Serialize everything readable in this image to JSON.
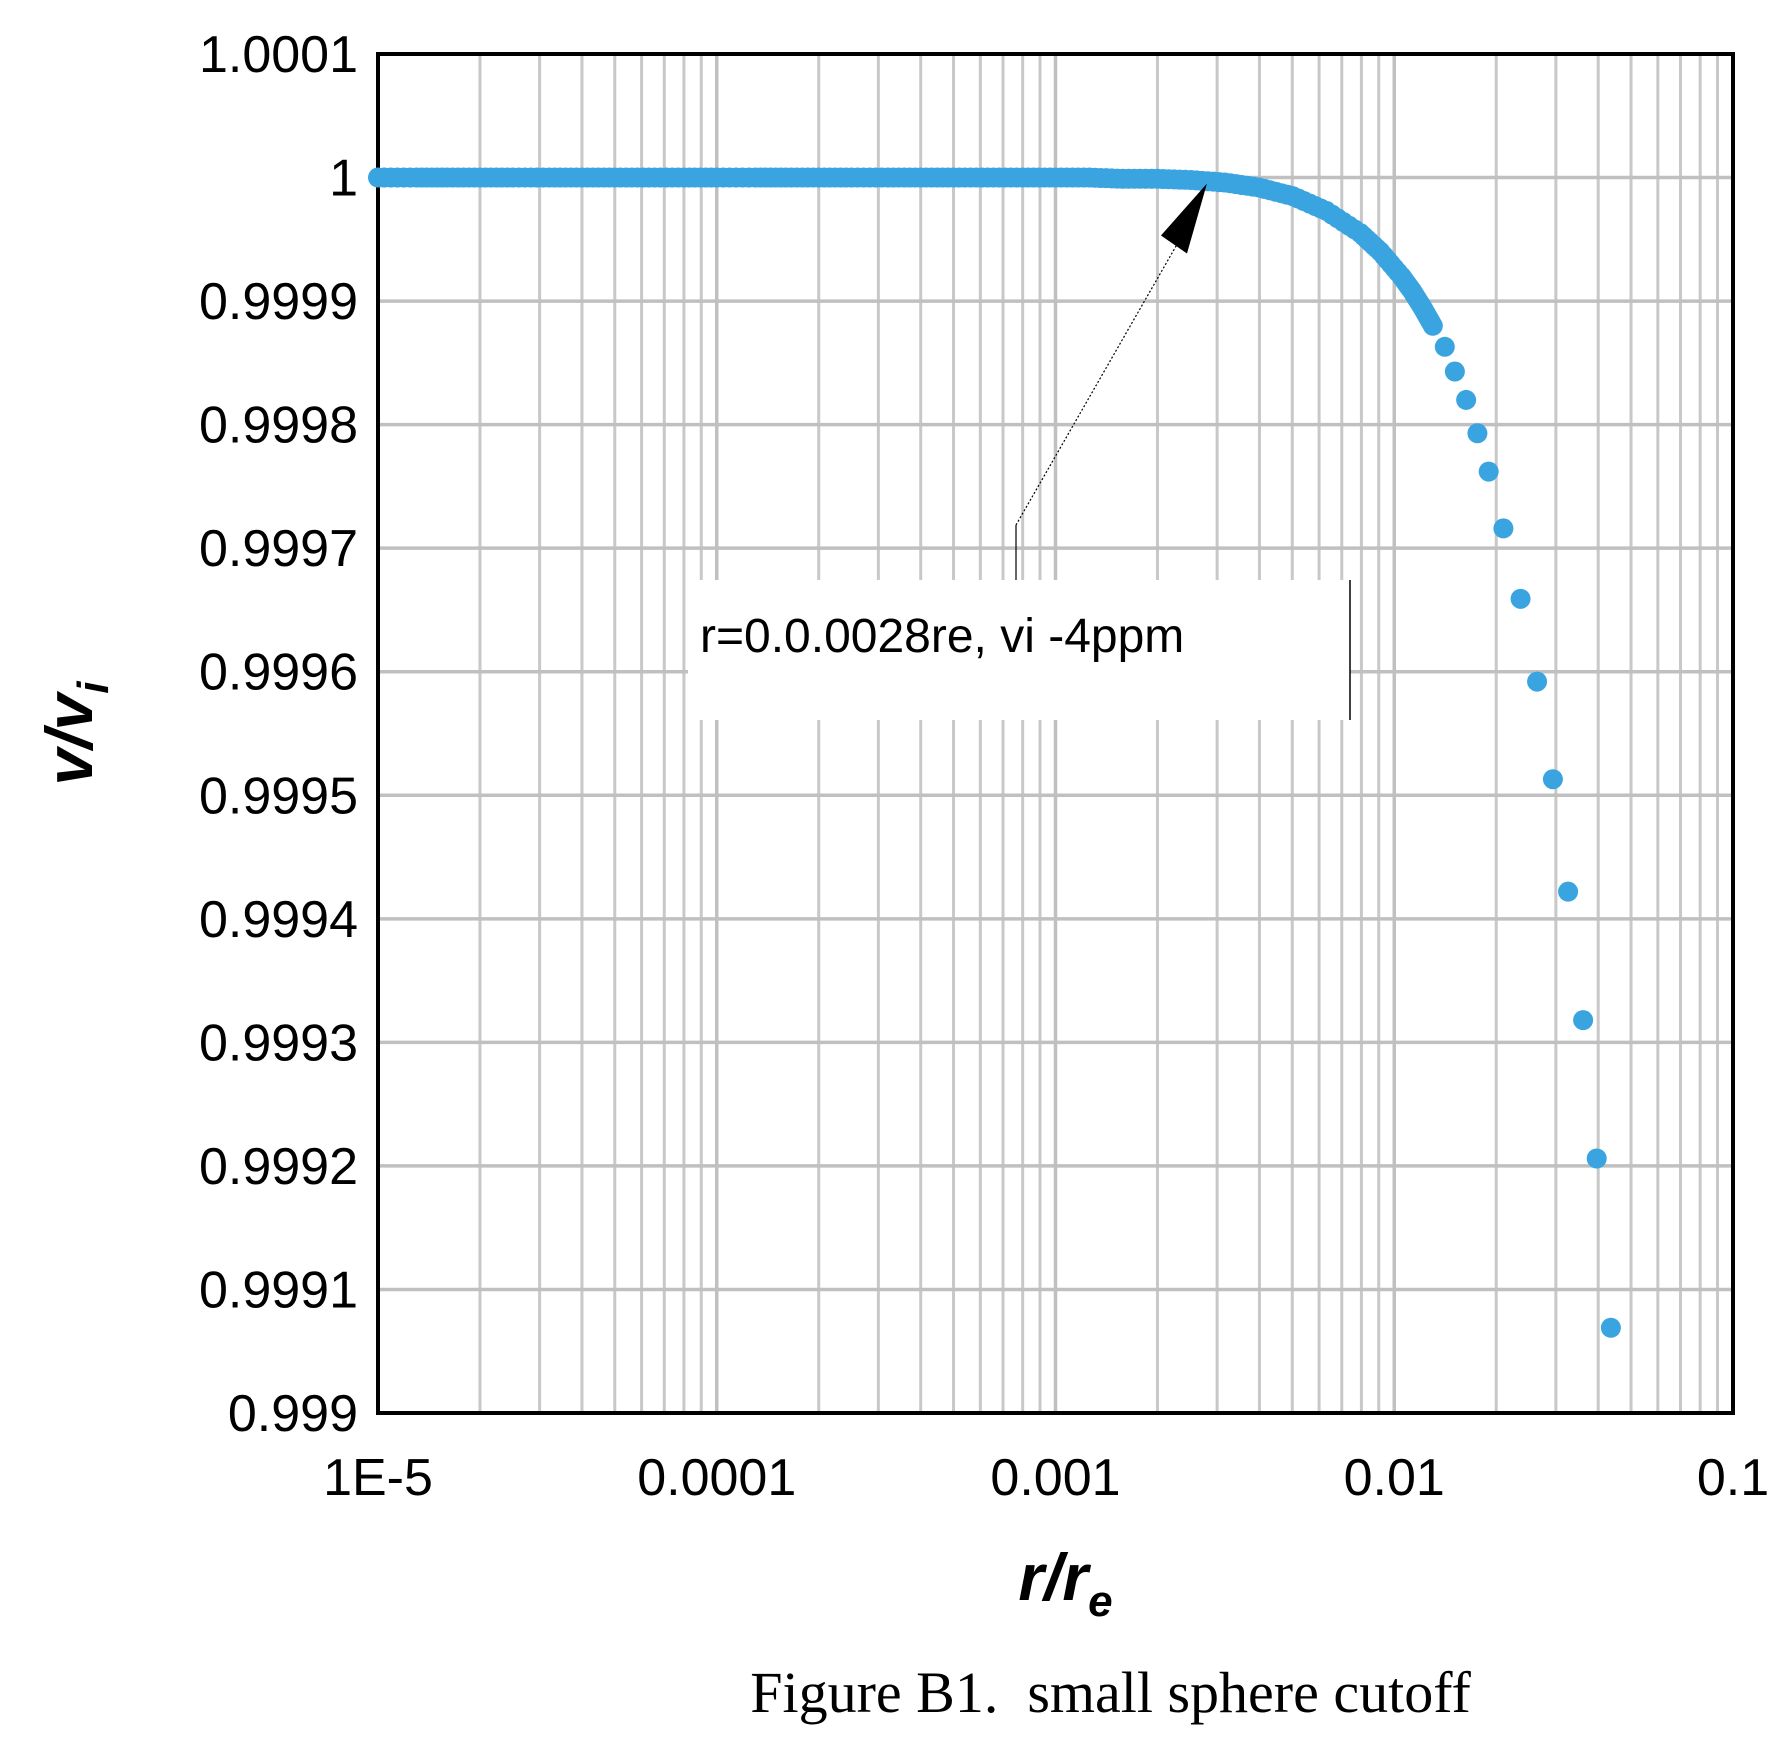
{
  "chart_data": {
    "type": "scatter",
    "caption": "Figure B1.  small sphere cutoff",
    "xlabel": {
      "base": "r/r",
      "sub": "e"
    },
    "ylabel": {
      "base": "v/v",
      "sub": "i"
    },
    "xscale": "log",
    "xlim": [
      1e-05,
      0.1
    ],
    "ylim": [
      0.999,
      1.0001
    ],
    "grid": true,
    "legend": "none",
    "xticks": [
      {
        "value": 1e-05,
        "label": "1E-5"
      },
      {
        "value": 0.0001,
        "label": "0.0001"
      },
      {
        "value": 0.001,
        "label": "0.001"
      },
      {
        "value": 0.01,
        "label": "0.01"
      },
      {
        "value": 0.1,
        "label": "0.1"
      }
    ],
    "yticks": [
      {
        "value": 1.0001,
        "label": "1.0001"
      },
      {
        "value": 1.0,
        "label": "1"
      },
      {
        "value": 0.9999,
        "label": "0.9999"
      },
      {
        "value": 0.9998,
        "label": "0.9998"
      },
      {
        "value": 0.9997,
        "label": "0.9997"
      },
      {
        "value": 0.9996,
        "label": "0.9996"
      },
      {
        "value": 0.9995,
        "label": "0.9995"
      },
      {
        "value": 0.9994,
        "label": "0.9994"
      },
      {
        "value": 0.9993,
        "label": "0.9993"
      },
      {
        "value": 0.9992,
        "label": "0.9992"
      },
      {
        "value": 0.9991,
        "label": "0.9991"
      },
      {
        "value": 0.999,
        "label": "0.999"
      }
    ],
    "marker_color": "#3aa4e0",
    "series": [
      {
        "x": [
          1e-05,
          1.3e-05,
          1.6e-05,
          2e-05,
          2.5e-05,
          3.2e-05,
          4e-05,
          5e-05,
          6.3e-05,
          8e-05,
          0.0001,
          0.00013,
          0.00016,
          0.0002,
          0.00025,
          0.00032,
          0.0004,
          0.0005,
          0.00063,
          0.0008,
          0.001,
          0.00126,
          0.00158,
          0.002,
          0.00251,
          0.00316,
          0.00398,
          0.00501,
          0.0063,
          0.00794,
          0.0091,
          0.0105,
          0.0113,
          0.0121,
          0.013,
          0.0141,
          0.0151,
          0.0163,
          0.0176,
          0.019,
          0.021,
          0.0236,
          0.0264,
          0.0294,
          0.0326,
          0.0361,
          0.0396,
          0.0436
        ],
        "y": [
          1.0,
          1.0,
          1.0,
          1.0,
          1.0,
          1.0,
          1.0,
          1.0,
          1.0,
          1.0,
          1.0,
          1.0,
          1.0,
          1.0,
          1.0,
          1.0,
          1.0,
          1.0,
          1.0,
          1.0,
          1.0,
          1.0,
          0.999999,
          0.999999,
          0.999998,
          0.999996,
          0.999992,
          0.999985,
          0.999973,
          0.999955,
          0.99994,
          0.99992,
          0.999908,
          0.999895,
          0.99988,
          0.999863,
          0.999843,
          0.99982,
          0.999793,
          0.999762,
          0.999716,
          0.999659,
          0.999592,
          0.999513,
          0.999422,
          0.999318,
          0.999206,
          0.999069
        ]
      }
    ],
    "annotation": {
      "text": "r=0.0.0028re, vi -4ppm",
      "target_x": 0.0028,
      "target_y": 1.0
    }
  }
}
